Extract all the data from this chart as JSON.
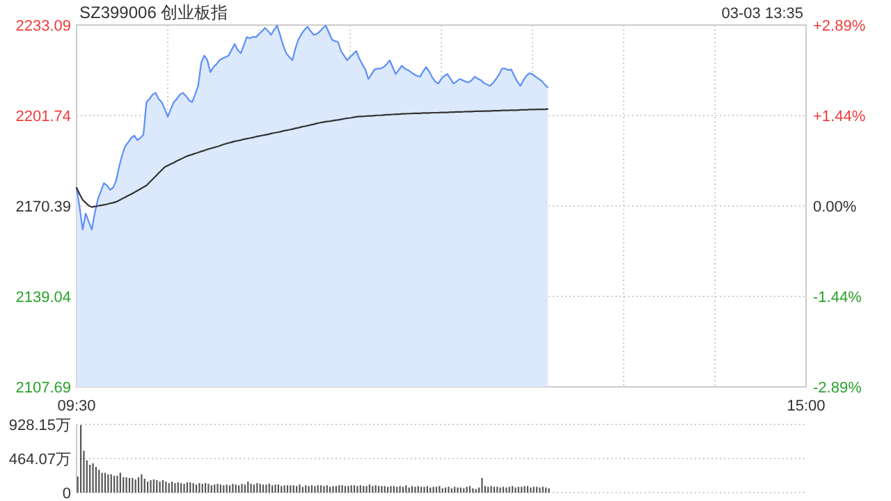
{
  "chart_data": [
    {
      "type": "line",
      "title": "SZ399006 创业板指",
      "annotations": [
        "03-03 13:35"
      ],
      "categories": [
        "09:30",
        null,
        null,
        null,
        null,
        null,
        null,
        null,
        null,
        null,
        null,
        null,
        null,
        null,
        null,
        null,
        null,
        null,
        null,
        null,
        null,
        null,
        null,
        null,
        null,
        null,
        null,
        null,
        null,
        null,
        null,
        null,
        null,
        null,
        null,
        null,
        null,
        null,
        null,
        null,
        null,
        null,
        null,
        null,
        null,
        null,
        null,
        null,
        null,
        null,
        null,
        null,
        null,
        null,
        null,
        null,
        null,
        null,
        null,
        null,
        null,
        null,
        null,
        null,
        null,
        null,
        null,
        null,
        null,
        null,
        null,
        null,
        null,
        null,
        null,
        null,
        null,
        null,
        null,
        null,
        null,
        null,
        null,
        null,
        null,
        null,
        null,
        null,
        null,
        null,
        null,
        null,
        null,
        null,
        null,
        null,
        null,
        null,
        null,
        null,
        null,
        null,
        null,
        null,
        null,
        null,
        null,
        null,
        null,
        null,
        null,
        null,
        null,
        null,
        null,
        null,
        null,
        null,
        null,
        null,
        null,
        null,
        null,
        null,
        null,
        null,
        null,
        null,
        null,
        null,
        null,
        null,
        null,
        null,
        null,
        null,
        null,
        null,
        null,
        null,
        null,
        null,
        null,
        null,
        null,
        null,
        null,
        null,
        null,
        null,
        null,
        null,
        null,
        null,
        null,
        null,
        null,
        null,
        null,
        null,
        null,
        null,
        null,
        null,
        null,
        null,
        null,
        null,
        null,
        null,
        null,
        null,
        null,
        null,
        null,
        null,
        null,
        null,
        null,
        null,
        null,
        null,
        null,
        null,
        null,
        null,
        null,
        null,
        null,
        null,
        null,
        null,
        null,
        null,
        null,
        null,
        null,
        null,
        null,
        null,
        null,
        null,
        null,
        null,
        null,
        null,
        null,
        null,
        null,
        null,
        null,
        null,
        null,
        null,
        null,
        null,
        null,
        null,
        null,
        null,
        null,
        null,
        null,
        null,
        null,
        null,
        null,
        null,
        null,
        null,
        null,
        null,
        null,
        null,
        null,
        null,
        null,
        null,
        null,
        null,
        "15:00"
      ],
      "ylim": [
        2107.69,
        2233.09
      ],
      "yticks": [
        2107.69,
        2139.04,
        2170.39,
        2201.74,
        2233.09
      ],
      "y2lim": [
        -2.89,
        2.89
      ],
      "y2ticks": [
        {
          "value": -2.89,
          "label": "-2.89%"
        },
        {
          "value": -1.44,
          "label": "-1.44%"
        },
        {
          "value": 0,
          "label": "0.00%"
        },
        {
          "value": 1.44,
          "label": "+1.44%"
        },
        {
          "value": 2.89,
          "label": "+2.89%"
        }
      ],
      "grid": true,
      "series": [
        {
          "type": "area",
          "color": "#5b8ff9",
          "values": [
            2176.7,
            2170.0,
            2162.2,
            2167.8,
            2165.0,
            2162.2,
            2168.0,
            2172.7,
            2175.5,
            2178.3,
            2177.5,
            2176.0,
            2176.7,
            2179.1,
            2184.0,
            2188.0,
            2191.1,
            2192.5,
            2194.0,
            2194.8,
            2193.2,
            2194.0,
            2195.1,
            2206.4,
            2207.5,
            2209.0,
            2209.6,
            2207.5,
            2206.4,
            2204.0,
            2201.3,
            2204.0,
            2206.4,
            2207.5,
            2209.0,
            2209.6,
            2208.5,
            2207.0,
            2206.4,
            2209.0,
            2212.0,
            2220.0,
            2222.5,
            2221.0,
            2216.8,
            2218.5,
            2219.5,
            2220.9,
            2221.5,
            2222.0,
            2222.5,
            2224.5,
            2226.5,
            2224.5,
            2223.3,
            2226.0,
            2228.9,
            2228.5,
            2229.0,
            2228.9,
            2230.0,
            2231.0,
            2232.1,
            2231.0,
            2229.7,
            2231.5,
            2232.9,
            2229.5,
            2226.0,
            2223.3,
            2222.0,
            2220.9,
            2225.0,
            2228.1,
            2230.0,
            2231.5,
            2232.5,
            2231.0,
            2229.7,
            2230.0,
            2230.8,
            2232.0,
            2232.9,
            2230.5,
            2228.1,
            2227.5,
            2227.3,
            2224.1,
            2222.5,
            2220.9,
            2222.0,
            2223.0,
            2224.1,
            2221.5,
            2219.5,
            2217.7,
            2214.4,
            2216.0,
            2217.7,
            2218.0,
            2218.0,
            2218.5,
            2219.5,
            2220.9,
            2218.5,
            2216.1,
            2217.5,
            2219.0,
            2218.0,
            2217.5,
            2216.8,
            2216.0,
            2215.5,
            2215.2,
            2217.0,
            2218.5,
            2217.0,
            2215.0,
            2213.5,
            2212.8,
            2214.5,
            2215.5,
            2216.1,
            2214.5,
            2212.8,
            2213.5,
            2214.4,
            2214.0,
            2213.5,
            2213.2,
            2214.0,
            2215.2,
            2214.5,
            2214.0,
            2213.0,
            2212.5,
            2212.0,
            2213.0,
            2214.4,
            2216.0,
            2218.0,
            2218.0,
            2217.5,
            2217.7,
            2215.5,
            2213.5,
            2212.0,
            2214.0,
            2215.5,
            2216.4,
            2216.0,
            2215.2,
            2214.5,
            2213.7,
            2212.5,
            2211.5,
            null,
            null,
            null,
            null,
            null,
            null,
            null,
            null,
            null,
            null,
            null,
            null,
            null,
            null,
            null,
            null,
            null,
            null,
            null,
            null,
            null,
            null,
            null,
            null,
            null,
            null,
            null,
            null,
            null,
            null,
            null,
            null,
            null,
            null,
            null,
            null,
            null,
            null,
            null,
            null,
            null,
            null,
            null,
            null,
            null,
            null,
            null,
            null,
            null,
            null,
            null,
            null,
            null,
            null,
            null,
            null,
            null,
            null,
            null,
            null,
            null,
            null,
            null,
            null,
            null,
            null,
            null,
            null,
            null,
            null,
            null,
            null,
            null,
            null,
            null,
            null,
            null,
            null,
            null,
            null,
            null,
            null,
            null,
            null,
            null
          ]
        },
        {
          "type": "line",
          "color": "#333333",
          "values": [
            2176.7,
            2174.5,
            2172.5,
            2171.5,
            2170.5,
            2170.0,
            2170.2,
            2170.4,
            2170.6,
            2170.8,
            2171.0,
            2171.3,
            2171.5,
            2171.8,
            2172.3,
            2172.9,
            2173.4,
            2174.0,
            2174.5,
            2175.1,
            2175.7,
            2176.3,
            2176.9,
            2177.5,
            2178.6,
            2179.6,
            2180.7,
            2181.8,
            2182.8,
            2183.9,
            2184.4,
            2184.9,
            2185.4,
            2186.0,
            2186.5,
            2187.0,
            2187.5,
            2187.9,
            2188.2,
            2188.6,
            2188.9,
            2189.3,
            2189.6,
            2190.0,
            2190.3,
            2190.6,
            2190.9,
            2191.2,
            2191.6,
            2191.9,
            2192.2,
            2192.5,
            2192.8,
            2193.0,
            2193.2,
            2193.5,
            2193.7,
            2193.9,
            2194.1,
            2194.4,
            2194.6,
            2194.8,
            2195.0,
            2195.2,
            2195.5,
            2195.7,
            2195.9,
            2196.1,
            2196.4,
            2196.6,
            2196.8,
            2197.0,
            2197.3,
            2197.5,
            2197.8,
            2198.0,
            2198.2,
            2198.5,
            2198.7,
            2199.0,
            2199.2,
            2199.4,
            2199.6,
            2199.7,
            2199.9,
            2200.1,
            2200.2,
            2200.4,
            2200.6,
            2200.8,
            2200.9,
            2201.1,
            2201.3,
            2201.4,
            2201.4,
            2201.5,
            2201.6,
            2201.6,
            2201.7,
            2201.8,
            2201.8,
            2201.9,
            2202.0,
            2202.0,
            2202.1,
            2202.2,
            2202.2,
            2202.3,
            2202.3,
            2202.4,
            2202.4,
            2202.5,
            2202.5,
            2202.5,
            2202.6,
            2202.6,
            2202.6,
            2202.7,
            2202.7,
            2202.7,
            2202.8,
            2202.8,
            2202.8,
            2202.9,
            2202.9,
            2203.0,
            2203.0,
            2203.0,
            2203.1,
            2203.1,
            2203.1,
            2203.2,
            2203.2,
            2203.2,
            2203.3,
            2203.3,
            2203.3,
            2203.4,
            2203.4,
            2203.4,
            2203.5,
            2203.5,
            2203.5,
            2203.6,
            2203.6,
            2203.6,
            2203.7,
            2203.7,
            2203.7,
            2203.8,
            2203.8,
            2203.8,
            2203.9,
            2203.9,
            2203.9,
            2204.0,
            null,
            null,
            null,
            null,
            null,
            null,
            null,
            null,
            null,
            null,
            null,
            null,
            null,
            null,
            null,
            null,
            null,
            null,
            null,
            null,
            null,
            null,
            null,
            null,
            null,
            null,
            null,
            null,
            null,
            null,
            null,
            null,
            null,
            null,
            null,
            null,
            null,
            null,
            null,
            null,
            null,
            null,
            null,
            null,
            null,
            null,
            null,
            null,
            null,
            null,
            null,
            null,
            null,
            null,
            null,
            null,
            null,
            null,
            null,
            null,
            null,
            null,
            null,
            null,
            null,
            null,
            null,
            null,
            null,
            null,
            null,
            null,
            null,
            null,
            null,
            null,
            null,
            null,
            null,
            null,
            null,
            null,
            null,
            null,
            null
          ]
        }
      ]
    },
    {
      "type": "bar",
      "color": "#555555",
      "ylim": [
        0,
        928.15
      ],
      "yticks": [
        0,
        {
          "value": 464.07,
          "label": "464.07万"
        },
        {
          "value": 928.15,
          "label": "928.15万"
        }
      ],
      "grid": "y",
      "tick_labels": "y",
      "categories": [
        null,
        null,
        null,
        null,
        null,
        null,
        null,
        null,
        null,
        null,
        null,
        null,
        null,
        null,
        null,
        null,
        null,
        null,
        null,
        null,
        null,
        null,
        null,
        null,
        null,
        null,
        null,
        null,
        null,
        null,
        null,
        null,
        null,
        null,
        null,
        null,
        null,
        null,
        null,
        null,
        null,
        null,
        null,
        null,
        null,
        null,
        null,
        null,
        null,
        null,
        null,
        null,
        null,
        null,
        null,
        null,
        null,
        null,
        null,
        null,
        null,
        null,
        null,
        null,
        null,
        null,
        null,
        null,
        null,
        null,
        null,
        null,
        null,
        null,
        null,
        null,
        null,
        null,
        null,
        null,
        null,
        null,
        null,
        null,
        null,
        null,
        null,
        null,
        null,
        null,
        null,
        null,
        null,
        null,
        null,
        null,
        null,
        null,
        null,
        null,
        null,
        null,
        null,
        null,
        null,
        null,
        null,
        null,
        null,
        null,
        null,
        null,
        null,
        null,
        null,
        null,
        null,
        null,
        null,
        null,
        null,
        null,
        null,
        null,
        null,
        null,
        null,
        null,
        null,
        null,
        null,
        null,
        null,
        null,
        null,
        null,
        null,
        null,
        null,
        null,
        null,
        null,
        null,
        null,
        null,
        null,
        null,
        null,
        null,
        null,
        null,
        null,
        null,
        null,
        null,
        null,
        null,
        null,
        null,
        null,
        null,
        null,
        null,
        null,
        null,
        null,
        null,
        null,
        null,
        null,
        null,
        null,
        null,
        null,
        null,
        null,
        null,
        null,
        null,
        null,
        null,
        null,
        null,
        null,
        null,
        null,
        null,
        null,
        null,
        null,
        null,
        null,
        null,
        null,
        null,
        null,
        null,
        null,
        null,
        null,
        null,
        null,
        null,
        null,
        null,
        null,
        null,
        null,
        null,
        null,
        null,
        null,
        null,
        null,
        null,
        null,
        null,
        null,
        null,
        null,
        null,
        null,
        null,
        null,
        null,
        null,
        null,
        null,
        null,
        null,
        null,
        null,
        null,
        null,
        null,
        null,
        null,
        null,
        null,
        null,
        null
      ],
      "values": [
        220,
        920,
        570,
        440,
        380,
        400,
        350,
        310,
        270,
        270,
        250,
        250,
        230,
        230,
        270,
        210,
        210,
        200,
        200,
        180,
        210,
        250,
        190,
        150,
        170,
        180,
        170,
        150,
        170,
        150,
        130,
        150,
        130,
        140,
        130,
        120,
        140,
        140,
        130,
        110,
        130,
        120,
        130,
        120,
        100,
        110,
        120,
        110,
        100,
        110,
        100,
        120,
        110,
        100,
        120,
        110,
        150,
        120,
        110,
        130,
        120,
        110,
        110,
        120,
        100,
        110,
        110,
        90,
        100,
        100,
        100,
        100,
        90,
        110,
        80,
        100,
        90,
        100,
        90,
        100,
        100,
        90,
        100,
        80,
        90,
        90,
        100,
        100,
        90,
        90,
        100,
        100,
        90,
        100,
        90,
        90,
        110,
        90,
        100,
        90,
        90,
        90,
        80,
        90,
        90,
        80,
        90,
        80,
        100,
        70,
        90,
        80,
        90,
        80,
        80,
        90,
        70,
        80,
        80,
        90,
        60,
        70,
        80,
        60,
        80,
        70,
        70,
        60,
        80,
        90,
        60,
        50,
        70,
        200,
        90,
        80,
        90,
        80,
        80,
        70,
        80,
        70,
        80,
        90,
        70,
        80,
        80,
        90,
        90,
        70,
        80,
        80,
        70,
        80,
        70,
        60,
        null,
        null,
        null,
        null,
        null,
        null,
        null,
        null,
        null,
        null,
        null,
        null,
        null,
        null,
        null,
        null,
        null,
        null,
        null,
        null,
        null,
        null,
        null,
        null,
        null,
        null,
        null,
        null,
        null,
        null,
        null,
        null,
        null,
        null,
        null,
        null,
        null,
        null,
        null,
        null,
        null,
        null,
        null,
        null,
        null,
        null,
        null,
        null,
        null,
        null,
        null,
        null,
        null,
        null,
        null,
        null,
        null,
        null,
        null,
        null,
        null,
        null,
        null,
        null,
        null,
        null,
        null,
        null,
        null,
        null,
        null,
        null,
        null,
        null,
        null,
        null,
        null,
        null,
        null,
        null,
        null,
        null,
        null,
        null,
        null
      ]
    }
  ]
}
